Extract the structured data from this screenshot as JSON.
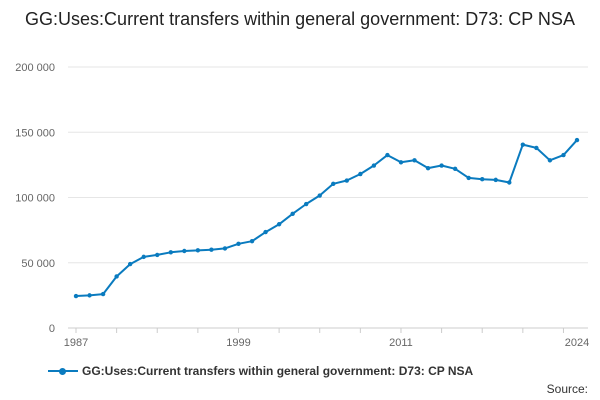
{
  "title": "GG:Uses:Current transfers within general government: D73: CP NSA",
  "source_label": "Source:",
  "colors": {
    "series": "#0a7bbf",
    "grid": "#e6e6e6",
    "axis": "#cccccc",
    "tick_text": "#666666"
  },
  "chart_data": {
    "type": "line",
    "title": "GG:Uses:Current transfers within general government: D73: CP NSA",
    "xlabel": "",
    "ylabel": "",
    "ylim": [
      0,
      200000
    ],
    "xlim": [
      1987,
      2024
    ],
    "y_ticks": [
      0,
      50000,
      100000,
      150000,
      200000
    ],
    "y_tick_labels": [
      "0",
      "50 000",
      "100 000",
      "150 000",
      "200 000"
    ],
    "x_tick_labels": [
      "1987",
      "1999",
      "2011",
      "2024"
    ],
    "x_tick_values": [
      1987,
      1999,
      2011,
      2024
    ],
    "grid": true,
    "legend_position": "bottom-left",
    "series": [
      {
        "name": "GG:Uses:Current transfers within general government: D73: CP NSA",
        "x": [
          1987,
          1988,
          1989,
          1990,
          1991,
          1992,
          1993,
          1994,
          1995,
          1996,
          1997,
          1998,
          1999,
          2000,
          2001,
          2002,
          2003,
          2004,
          2005,
          2006,
          2007,
          2008,
          2009,
          2010,
          2011,
          2012,
          2013,
          2014,
          2015,
          2016,
          2017,
          2018,
          2019,
          2020,
          2021,
          2022,
          2023,
          2024
        ],
        "values": [
          24500,
          25000,
          26000,
          39500,
          49000,
          54500,
          56000,
          58000,
          59000,
          59500,
          60000,
          61000,
          64500,
          66500,
          73500,
          79500,
          87500,
          95000,
          101500,
          110500,
          113000,
          118000,
          124500,
          132500,
          127000,
          128500,
          122500,
          124500,
          122000,
          115000,
          114000,
          113500,
          111500,
          140500,
          138000,
          128500,
          132500,
          144000
        ]
      }
    ]
  }
}
